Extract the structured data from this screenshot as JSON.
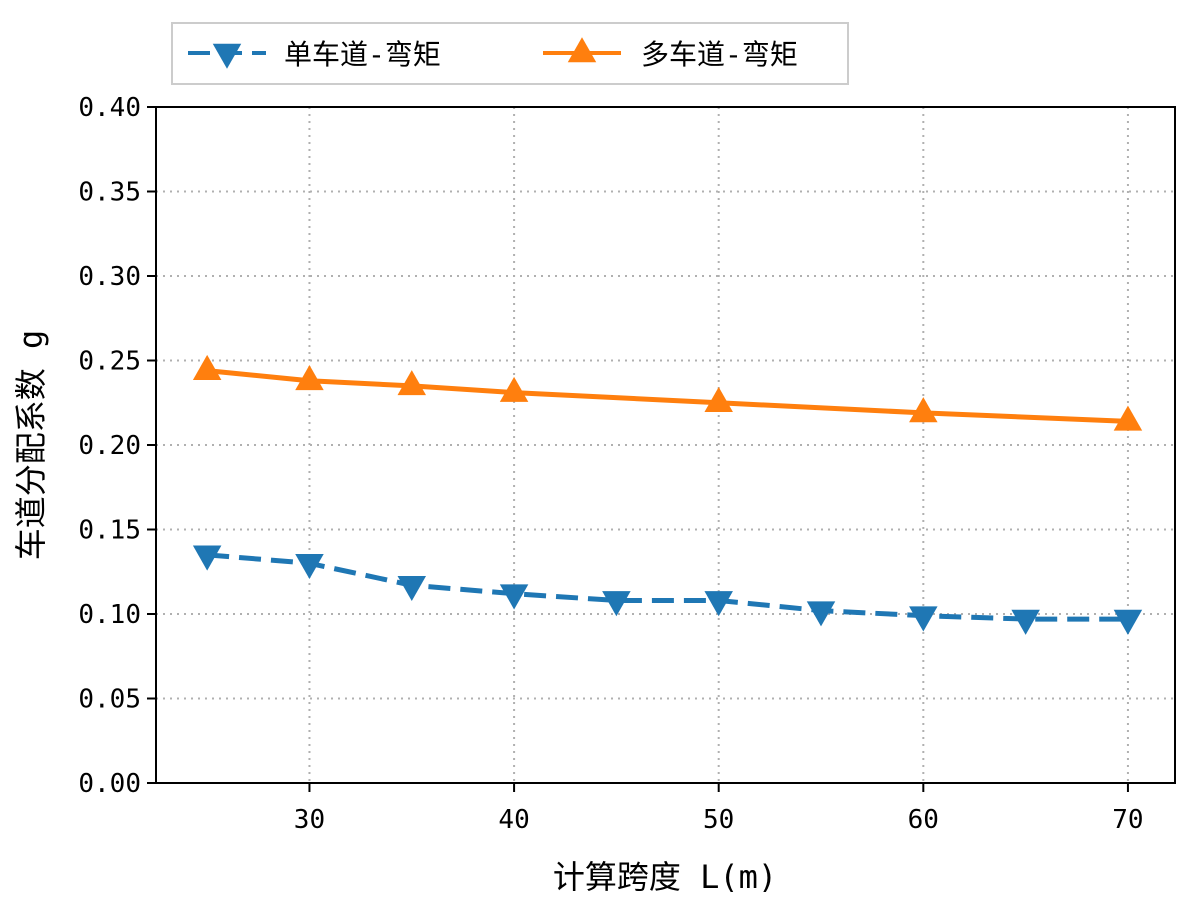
{
  "chart_data": {
    "type": "line",
    "xlabel": "计算跨度 L(m)",
    "ylabel": "车道分配系数 g",
    "xlim": [
      22.5,
      72.3
    ],
    "ylim": [
      0.0,
      0.4
    ],
    "x_ticks": [
      30,
      40,
      50,
      60,
      70
    ],
    "x_tick_labels": [
      "30",
      "40",
      "50",
      "60",
      "70"
    ],
    "y_ticks": [
      0.0,
      0.05,
      0.1,
      0.15,
      0.2,
      0.25,
      0.3,
      0.35,
      0.4
    ],
    "y_tick_labels": [
      "0.00",
      "0.05",
      "0.10",
      "0.15",
      "0.20",
      "0.25",
      "0.30",
      "0.35",
      "0.40"
    ],
    "grid": true,
    "legend_position": "top, outside plot, horizontal",
    "series": [
      {
        "name": "单车道-弯矩",
        "color": "#1f77b4",
        "line_style": "dashed",
        "marker": "triangle-down",
        "x": [
          25,
          30,
          35,
          40,
          45,
          50,
          55,
          60,
          65,
          70
        ],
        "y": [
          0.135,
          0.13,
          0.117,
          0.112,
          0.108,
          0.108,
          0.102,
          0.099,
          0.097,
          0.097
        ]
      },
      {
        "name": "多车道-弯矩",
        "color": "#ff7f0e",
        "line_style": "solid",
        "marker": "triangle-up",
        "x": [
          25,
          30,
          35,
          40,
          50,
          60,
          70
        ],
        "y": [
          0.244,
          0.238,
          0.235,
          0.231,
          0.225,
          0.219,
          0.214
        ]
      }
    ]
  }
}
